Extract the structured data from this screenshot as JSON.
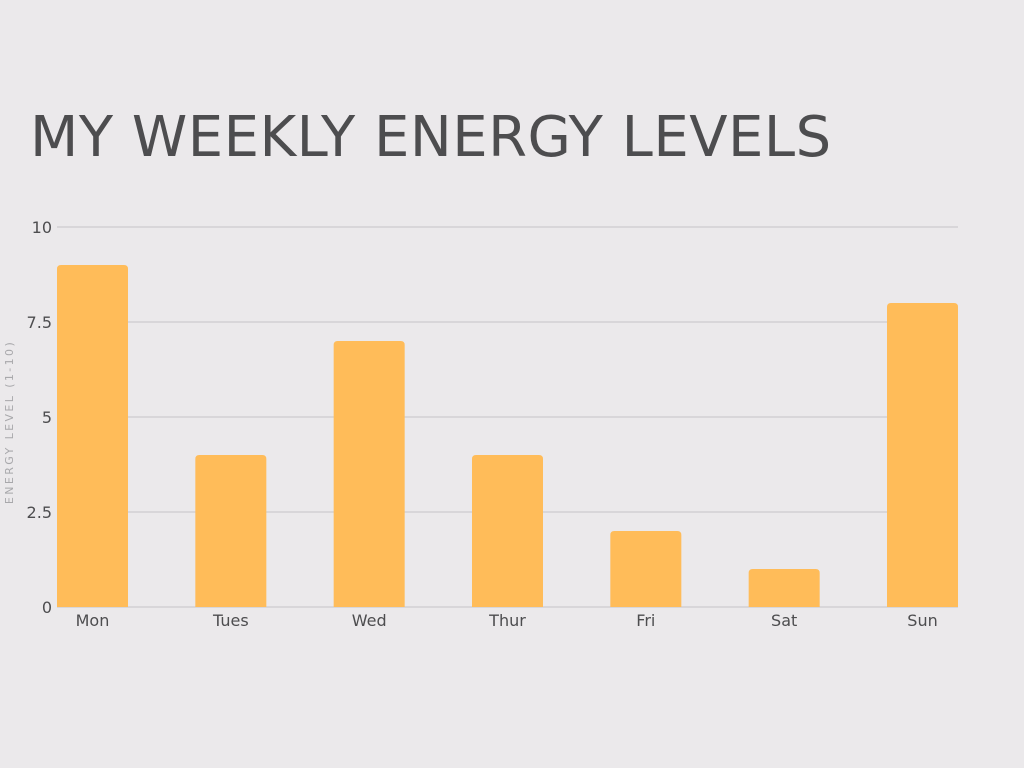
{
  "chart_data": {
    "type": "bar",
    "title": "MY WEEKLY ENERGY LEVELS",
    "xlabel": "",
    "ylabel": "ENERGY LEVEL (1-10)",
    "categories": [
      "Mon",
      "Tues",
      "Wed",
      "Thur",
      "Fri",
      "Sat",
      "Sun"
    ],
    "values": [
      9,
      4,
      7,
      4,
      2,
      1,
      8
    ],
    "ylim": [
      0,
      10
    ],
    "yticks": [
      0,
      2.5,
      5,
      7.5,
      10
    ],
    "ytick_labels": [
      "0",
      "2.5",
      "5",
      "7.5",
      "10"
    ],
    "grid": true,
    "legend": "none",
    "colors": {
      "bar": "#ffbc59",
      "grid": "#c6c4c7",
      "background": "#ebe9eb",
      "text": "#4d4d4f"
    }
  }
}
